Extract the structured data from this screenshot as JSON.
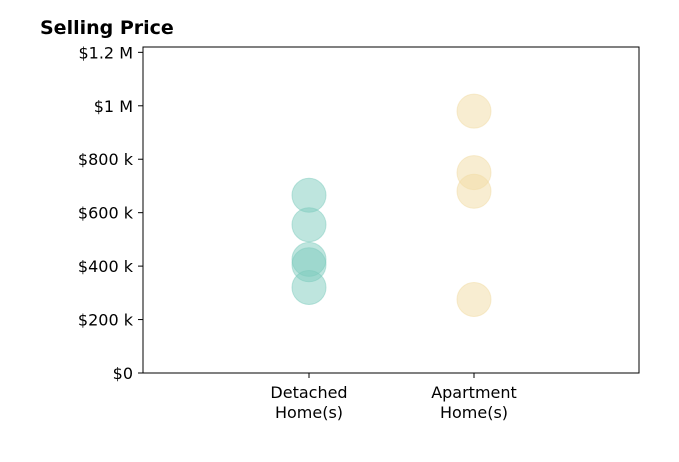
{
  "chart_data": {
    "type": "scatter",
    "title": "Selling Price",
    "xlabel": "",
    "ylabel": "",
    "categories": [
      [
        "Detached",
        "Home(s)"
      ],
      [
        "Apartment",
        "Home(s)"
      ]
    ],
    "ylim": [
      0,
      1220000
    ],
    "yticks": [
      {
        "value": 0,
        "label": "$0"
      },
      {
        "value": 200000,
        "label": "$200 k"
      },
      {
        "value": 400000,
        "label": "$400 k"
      },
      {
        "value": 600000,
        "label": "$600 k"
      },
      {
        "value": 800000,
        "label": "$800 k"
      },
      {
        "value": 1000000,
        "label": "$1 M"
      },
      {
        "value": 1200000,
        "label": "$1.2 M"
      }
    ],
    "grid": false,
    "series": [
      {
        "category_index": 0,
        "color": "#7ecbbd",
        "values": [
          665000,
          555000,
          425000,
          405000,
          320000
        ]
      },
      {
        "category_index": 1,
        "color": "#f2dba4",
        "values": [
          980000,
          750000,
          680000,
          275000
        ]
      }
    ]
  }
}
